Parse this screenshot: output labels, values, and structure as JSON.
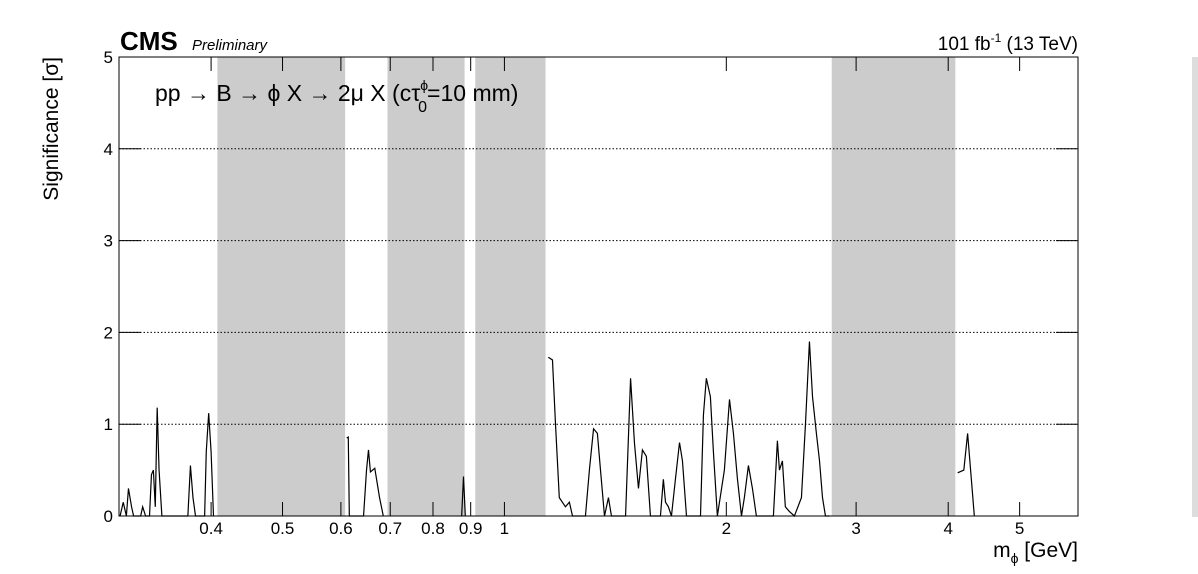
{
  "chart_data": {
    "type": "line",
    "experiment": "CMS",
    "status": "Preliminary",
    "lumi": {
      "main": "101 fb",
      "sup": "-1",
      "tail": " (13 TeV)"
    },
    "annotation": {
      "main": "pp → B → ϕ X → 2μ X (cτ",
      "sup": "ϕ",
      "sub": "0",
      "tail": "=10 mm)"
    },
    "x_label": {
      "main": "m",
      "sub": "ϕ",
      "tail": " [GeV]"
    },
    "y_label": "Significance [σ]",
    "log_x": true,
    "xlim": [
      0.3,
      6
    ],
    "xticks": [
      0.4,
      0.5,
      0.6,
      0.7,
      0.8,
      0.9,
      1,
      2,
      3,
      4,
      5
    ],
    "ylim": [
      0,
      5
    ],
    "yticks": [
      0,
      1,
      2,
      3,
      4,
      5
    ],
    "grid": true,
    "color": "#000000",
    "band_color": "#cccccc",
    "bands": [
      [
        0.408,
        0.608
      ],
      [
        0.694,
        0.883
      ],
      [
        0.913,
        1.137
      ],
      [
        2.78,
        4.09
      ]
    ],
    "x": [
      0.301,
      0.304,
      0.307,
      0.309,
      0.312,
      0.314,
      0.321,
      0.323,
      0.326,
      0.33,
      0.332,
      0.334,
      0.336,
      0.338,
      0.34,
      0.343,
      0.372,
      0.375,
      0.378,
      0.381,
      0.392,
      0.394,
      0.397,
      0.4,
      0.403,
      0.5,
      0.611,
      0.614,
      0.616,
      0.644,
      0.65,
      0.654,
      0.658,
      0.667,
      0.677,
      0.685,
      0.8,
      0.875,
      0.88,
      0.885,
      1.0,
      1.147,
      1.162,
      1.173,
      1.187,
      1.21,
      1.225,
      1.237,
      1.288,
      1.304,
      1.321,
      1.337,
      1.35,
      1.367,
      1.384,
      1.397,
      1.46,
      1.483,
      1.501,
      1.52,
      1.539,
      1.558,
      1.578,
      1.628,
      1.643,
      1.654,
      1.669,
      1.685,
      1.706,
      1.728,
      1.744,
      1.766,
      1.845,
      1.862,
      1.879,
      1.903,
      1.921,
      1.945,
      1.988,
      2.02,
      2.045,
      2.071,
      2.097,
      2.116,
      2.143,
      2.17,
      2.197,
      2.317,
      2.346,
      2.361,
      2.383,
      2.405,
      2.435,
      2.474,
      2.529,
      2.561,
      2.593,
      2.618,
      2.65,
      2.676,
      2.701,
      2.726,
      2.76,
      3.3,
      4.12,
      4.2,
      4.25,
      4.3,
      4.34
    ],
    "values": [
      0,
      0.15,
      0,
      0.3,
      0.1,
      0,
      0,
      0.1,
      0,
      0,
      0.45,
      0.5,
      0.1,
      1.18,
      0.5,
      0,
      0,
      0.55,
      0.2,
      0,
      0,
      0.7,
      1.12,
      0.7,
      0,
      null,
      0.85,
      0.86,
      0,
      0,
      0.5,
      0.72,
      0.48,
      0.52,
      0.2,
      0,
      null,
      0,
      0.43,
      0,
      null,
      1.73,
      1.7,
      1.0,
      0.2,
      0.1,
      0.15,
      0,
      0,
      0.5,
      0.95,
      0.9,
      0.5,
      0,
      0.2,
      0,
      0,
      1.5,
      0.8,
      0.3,
      0.72,
      0.65,
      0,
      0,
      0.4,
      0.15,
      0.1,
      0,
      0.4,
      0.8,
      0.6,
      0,
      0,
      1.1,
      1.5,
      1.3,
      0.7,
      0,
      0.5,
      1.27,
      0.9,
      0.4,
      0,
      0.2,
      0.55,
      0.3,
      0,
      0,
      0.82,
      0.5,
      0.6,
      0.1,
      0.05,
      0,
      0.2,
      1.0,
      1.9,
      1.3,
      0.9,
      0.6,
      0.2,
      0,
      0,
      null,
      0.47,
      0.5,
      0.9,
      0.4,
      0
    ]
  }
}
